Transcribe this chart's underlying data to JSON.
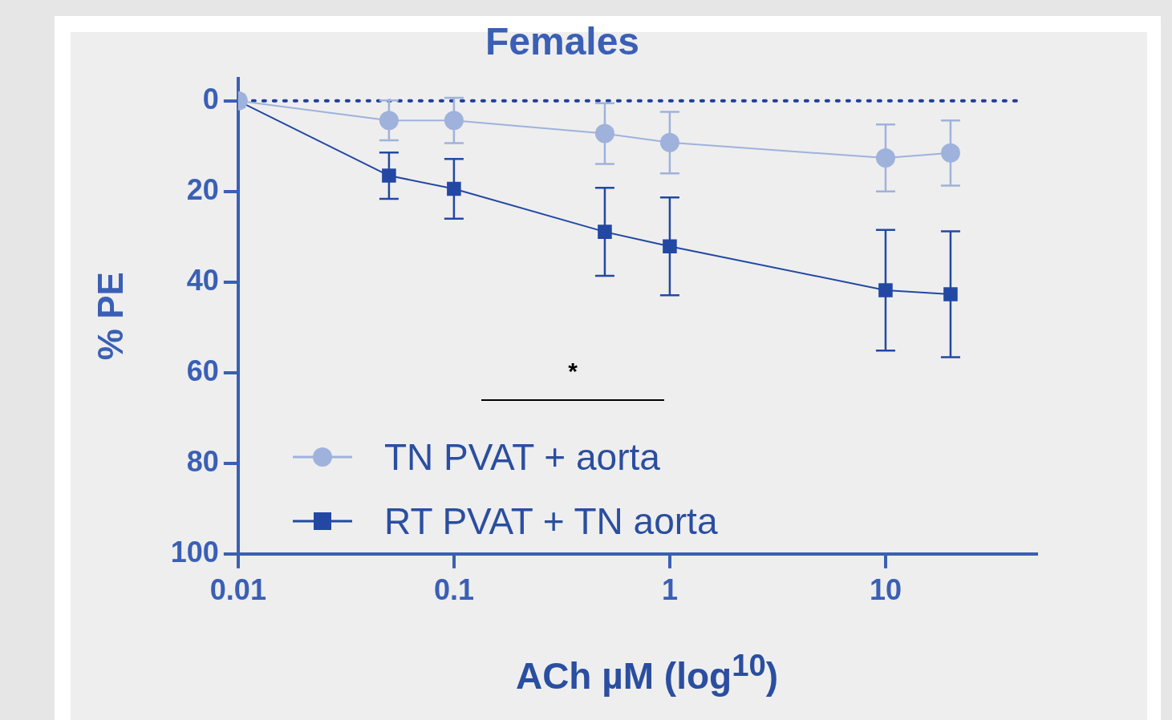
{
  "chart_data": {
    "type": "line",
    "title": "Females",
    "xlabel": "ACh µM (log$^{10}$)",
    "ylabel": "% PE",
    "log": "x",
    "xlim": [
      0.01,
      50
    ],
    "xticks": [
      0.01,
      0.1,
      1,
      10
    ],
    "ylim": [
      100,
      -5
    ],
    "yticks": [
      0,
      20,
      40,
      60,
      80,
      100
    ],
    "grid": false,
    "legend": "bottom left",
    "line_style": "solid",
    "annotations": [
      "*"
    ],
    "ref_lines": [
      {
        "axis": "y",
        "value": 0,
        "line_style": "dotted",
        "color": "#1f3f99"
      }
    ],
    "series": [
      {
        "name": "TN PVAT + aorta",
        "color": "#9fb2dc",
        "marker": "circle",
        "x": [
          0.01,
          0.05,
          0.1,
          0.5,
          1,
          10,
          20
        ],
        "values": [
          0,
          4.3,
          4.3,
          7.2,
          9.2,
          12.6,
          11.5
        ],
        "errors": [
          null,
          4.4,
          5,
          6.7,
          6.8,
          7.4,
          7.2
        ]
      },
      {
        "name": "RT PVAT + TN aorta",
        "color": "#2348a3",
        "marker": "square",
        "x": [
          0.01,
          0.05,
          0.1,
          0.5,
          1,
          10,
          20
        ],
        "values": [
          0,
          16.5,
          19.4,
          28.9,
          32.1,
          41.8,
          42.7
        ],
        "errors": [
          null,
          5.1,
          6.6,
          9.7,
          10.8,
          13.3,
          13.9
        ]
      }
    ]
  }
}
